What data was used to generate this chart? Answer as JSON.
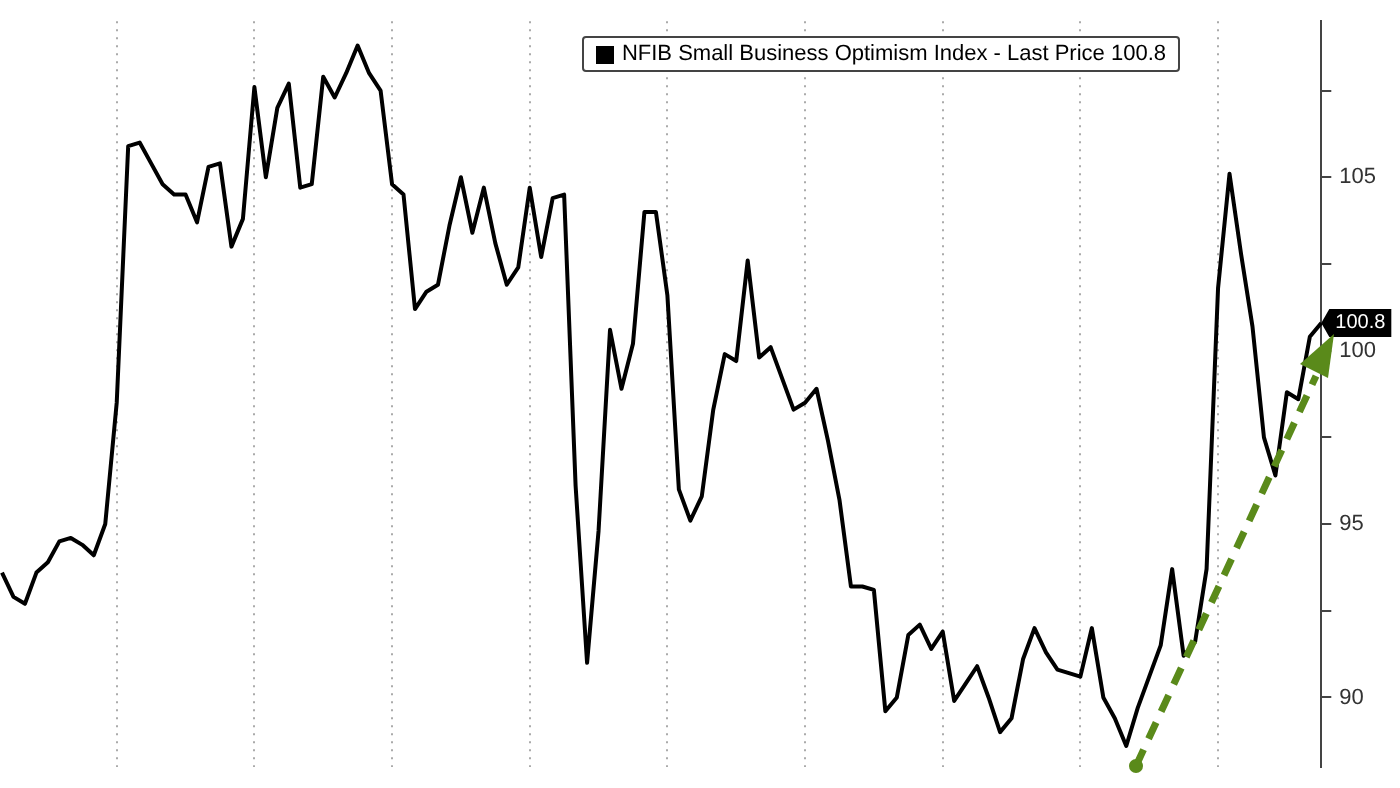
{
  "chart_data": {
    "type": "line",
    "categories": [
      null,
      null,
      null,
      null,
      null,
      null,
      null,
      null,
      null,
      null,
      null,
      null,
      null,
      null,
      null,
      null,
      null,
      null,
      null,
      null,
      null,
      null,
      null,
      null,
      null,
      null,
      null,
      null,
      null,
      null,
      null,
      null,
      null,
      null,
      null,
      null,
      null,
      null,
      null,
      null,
      null,
      null,
      null,
      null,
      null,
      null,
      null,
      null,
      null,
      null,
      null,
      null,
      null,
      null,
      null,
      null,
      null,
      null,
      null,
      null,
      null,
      null,
      null,
      null,
      null,
      null,
      null,
      null,
      null,
      null,
      null,
      null,
      null,
      null,
      null,
      null,
      null,
      null,
      null,
      null,
      null,
      null,
      null,
      null,
      null,
      null,
      null,
      null,
      null,
      null,
      null,
      null,
      null,
      null,
      null,
      null,
      null,
      null,
      null,
      null,
      null,
      null,
      null,
      null,
      null,
      null,
      null,
      null,
      null,
      null,
      null,
      null,
      null,
      null,
      null,
      null
    ],
    "series": [
      {
        "name": "NFIB Small Business Optimism Index - Last Price 100.8",
        "color": "#000000",
        "values": [
          93.6,
          92.9,
          92.7,
          93.6,
          93.9,
          94.5,
          94.6,
          94.4,
          94.1,
          95.0,
          98.5,
          105.9,
          106.0,
          105.4,
          104.8,
          104.5,
          104.5,
          103.7,
          105.3,
          105.4,
          103.0,
          103.8,
          107.6,
          105.0,
          107.0,
          107.7,
          104.7,
          104.8,
          107.9,
          107.3,
          108.0,
          108.8,
          108.0,
          107.5,
          104.8,
          104.5,
          101.2,
          101.7,
          101.9,
          103.6,
          105.0,
          103.4,
          104.7,
          103.1,
          101.9,
          102.4,
          104.7,
          102.7,
          104.4,
          104.5,
          96.1,
          91.0,
          94.8,
          100.6,
          98.9,
          100.2,
          104.0,
          104.0,
          101.6,
          96.0,
          95.1,
          95.8,
          98.3,
          99.9,
          99.7,
          102.6,
          99.8,
          100.1,
          99.2,
          98.3,
          98.5,
          98.9,
          97.4,
          95.7,
          93.2,
          93.2,
          93.1,
          89.6,
          90.0,
          91.8,
          92.1,
          91.4,
          91.9,
          89.9,
          90.4,
          90.9,
          90.0,
          89.0,
          89.4,
          91.1,
          92.0,
          91.3,
          90.8,
          90.7,
          90.6,
          92.0,
          90.0,
          89.4,
          88.6,
          89.7,
          90.6,
          91.5,
          93.7,
          91.2,
          91.6,
          93.7,
          101.8,
          105.1,
          102.8,
          100.7,
          97.5,
          96.4,
          98.8,
          98.6,
          100.4,
          100.8
        ]
      }
    ],
    "ylim": [
      88,
      109.5
    ],
    "yticks": [
      {
        "value": 90,
        "label": "90"
      },
      {
        "value": 92.5,
        "label": null
      },
      {
        "value": 95,
        "label": "95"
      },
      {
        "value": 97.5,
        "label": null
      },
      {
        "value": 100,
        "label": "100"
      },
      {
        "value": 102.5,
        "label": null
      },
      {
        "value": 105,
        "label": "105"
      },
      {
        "value": 107.5,
        "label": null
      }
    ],
    "annotations": [
      "100.8"
    ],
    "grid": true,
    "legend": "top right",
    "tick_labels": "y",
    "marker": "none",
    "line_style": "solid"
  }
}
